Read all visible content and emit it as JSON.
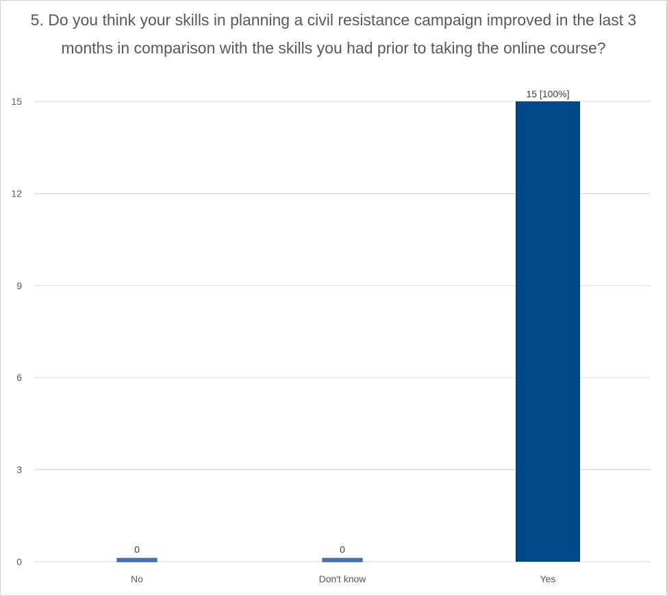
{
  "chart_data": {
    "type": "bar",
    "title": "5. Do you think your skills in planning a civil resistance campaign improved in the last 3 months in comparison with the skills you had prior to taking the online course?",
    "categories": [
      "No",
      "Don't know",
      "Yes"
    ],
    "values": [
      0,
      0,
      15
    ],
    "data_labels": [
      "0",
      "0",
      "15 [100%]"
    ],
    "y_ticks": [
      0,
      3,
      6,
      9,
      12,
      15
    ],
    "ylim": [
      0,
      15
    ],
    "grid": true,
    "legend": "none",
    "colors": {
      "bar": "#004785",
      "zero_bar": "#4472c4",
      "zero_bar_border": "#2f528f",
      "grid": "#d9d9d9",
      "text": "#595959"
    }
  }
}
